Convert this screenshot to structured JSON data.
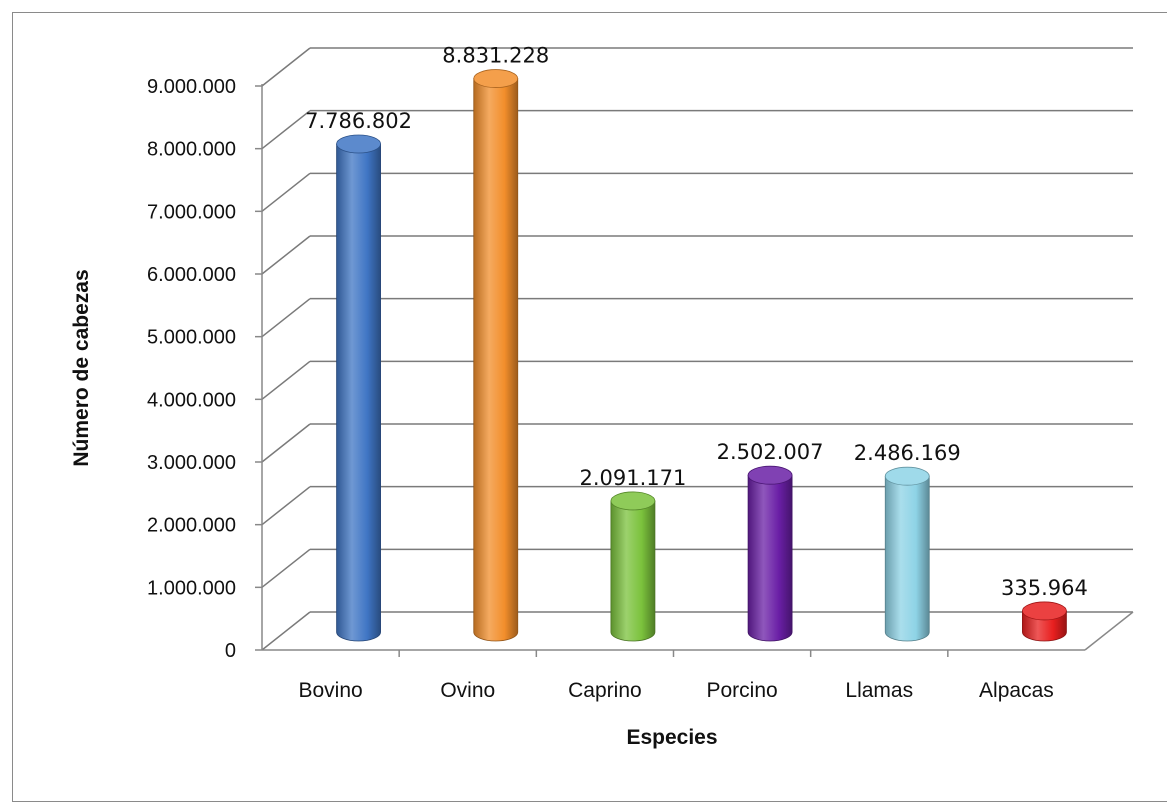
{
  "chart_data": {
    "type": "bar",
    "style": "3d-cylinder",
    "title": "",
    "xlabel": "Especies",
    "ylabel": "Número de cabezas",
    "categories": [
      "Bovino",
      "Ovino",
      "Caprino",
      "Porcino",
      "Llamas",
      "Alpacas"
    ],
    "values": [
      7786802,
      8831228,
      2091171,
      2502007,
      2486169,
      335964
    ],
    "value_labels": [
      "7.786.802",
      "8.831.228",
      "2.091.171",
      "2.502.007",
      "2.486.169",
      "335.964"
    ],
    "colors": [
      "#3f75c4",
      "#f28e2b",
      "#7bc23c",
      "#6a1fa6",
      "#8ed3e6",
      "#e81f1f"
    ],
    "ylim": [
      0,
      9000000
    ],
    "yticks": [
      0,
      1000000,
      2000000,
      3000000,
      4000000,
      5000000,
      6000000,
      7000000,
      8000000,
      9000000
    ],
    "ytick_labels": [
      "0",
      "1.000.000",
      "2.000.000",
      "3.000.000",
      "4.000.000",
      "5.000.000",
      "6.000.000",
      "7.000.000",
      "8.000.000",
      "9.000.000"
    ],
    "grid": true,
    "legend": "none"
  }
}
